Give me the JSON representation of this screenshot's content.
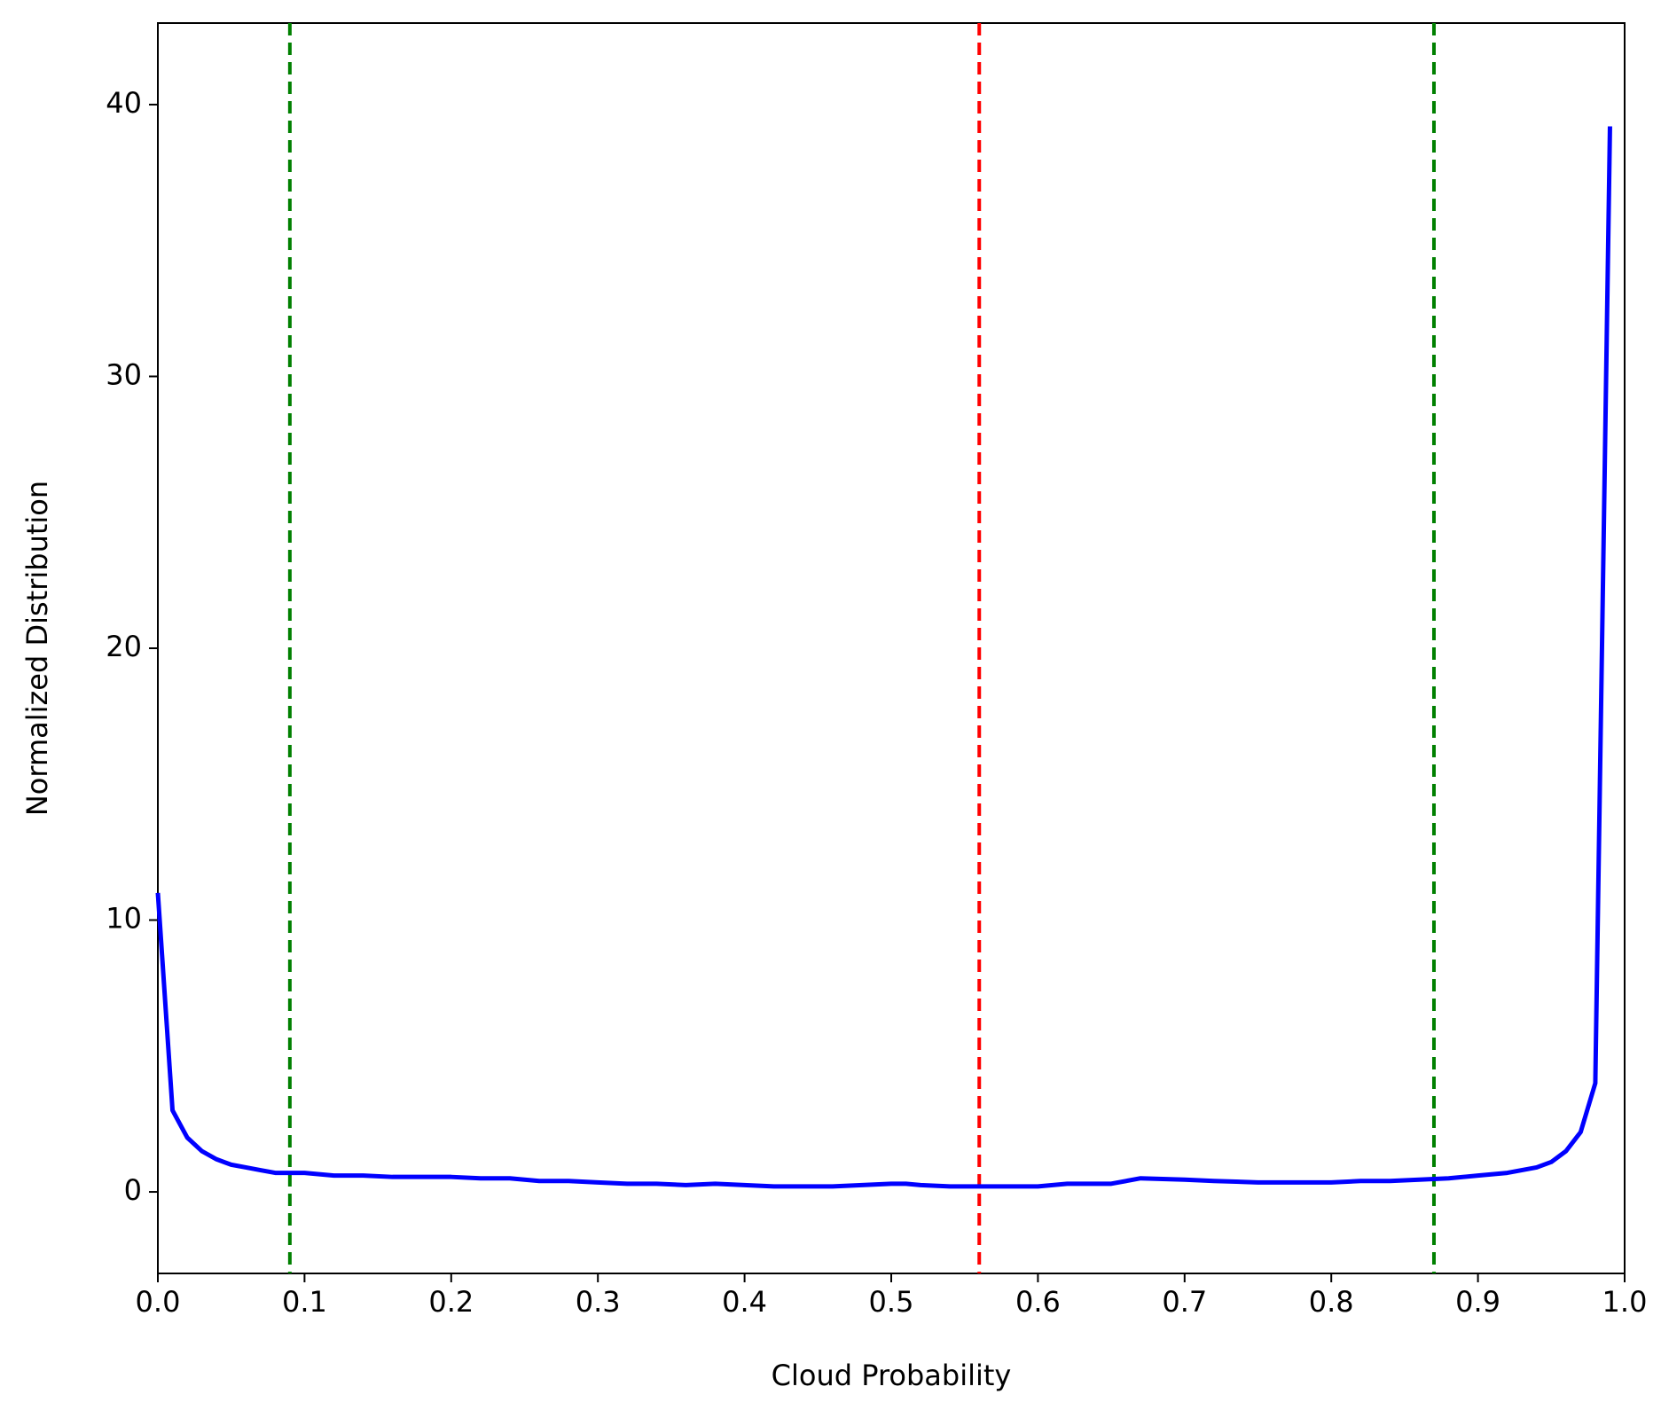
{
  "chart_data": {
    "type": "line",
    "xlabel": "Cloud Probability",
    "ylabel": "Normalized Distribution",
    "x": [
      0,
      0.01,
      0.02,
      0.03,
      0.04,
      0.05,
      0.06,
      0.07,
      0.08,
      0.09,
      0.1,
      0.12,
      0.14,
      0.16,
      0.18,
      0.2,
      0.22,
      0.24,
      0.26,
      0.28,
      0.3,
      0.32,
      0.34,
      0.36,
      0.38,
      0.4,
      0.42,
      0.44,
      0.46,
      0.48,
      0.5,
      0.51,
      0.52,
      0.54,
      0.56,
      0.58,
      0.6,
      0.62,
      0.65,
      0.67,
      0.7,
      0.72,
      0.75,
      0.78,
      0.8,
      0.82,
      0.84,
      0.86,
      0.88,
      0.9,
      0.92,
      0.94,
      0.95,
      0.96,
      0.97,
      0.98,
      0.99
    ],
    "series": [
      {
        "color": "#0000ff",
        "values": [
          11,
          3.0,
          2.0,
          1.5,
          1.2,
          1.0,
          0.9,
          0.8,
          0.7,
          0.7,
          0.7,
          0.6,
          0.6,
          0.55,
          0.55,
          0.55,
          0.5,
          0.5,
          0.4,
          0.4,
          0.35,
          0.3,
          0.3,
          0.25,
          0.3,
          0.25,
          0.2,
          0.2,
          0.2,
          0.25,
          0.3,
          0.3,
          0.25,
          0.2,
          0.2,
          0.2,
          0.2,
          0.3,
          0.3,
          0.5,
          0.45,
          0.4,
          0.35,
          0.35,
          0.35,
          0.4,
          0.4,
          0.45,
          0.5,
          0.6,
          0.7,
          0.9,
          1.1,
          1.5,
          2.2,
          4.0,
          39.2
        ]
      }
    ],
    "vlines": [
      {
        "x": 0.09,
        "color": "#008000"
      },
      {
        "x": 0.56,
        "color": "#ff0000"
      },
      {
        "x": 0.87,
        "color": "#008000"
      }
    ],
    "xlim": [
      0,
      1
    ],
    "ylim": [
      -3,
      43
    ],
    "xticks": [
      {
        "value": 0,
        "label": "0.0"
      },
      0.1,
      0.2,
      0.3,
      0.4,
      0.5,
      0.6,
      0.7,
      0.8,
      0.9,
      {
        "value": 1,
        "label": "1.0"
      }
    ],
    "yticks": [
      0,
      10,
      20,
      30,
      40
    ]
  }
}
